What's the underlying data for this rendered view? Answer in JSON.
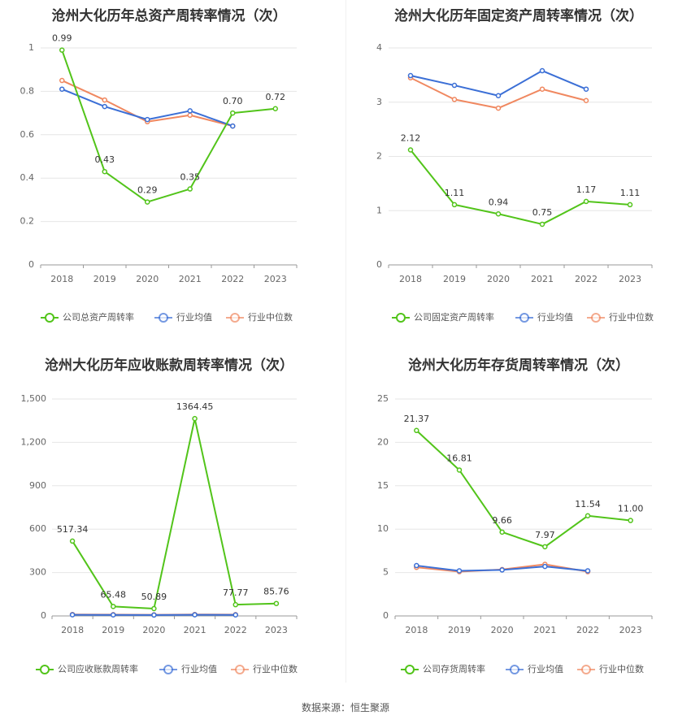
{
  "source": "数据来源：恒生聚源",
  "colors": {
    "company": "#52c41a",
    "avg": "#3b6fd6",
    "median": "#f08860"
  },
  "chart_data": [
    {
      "type": "line",
      "title": "沧州大化历年总资产周转率情况（次）",
      "categories": [
        "2018",
        "2019",
        "2020",
        "2021",
        "2022",
        "2023"
      ],
      "ylim": [
        0,
        1
      ],
      "yticks": [
        "0",
        "0.2",
        "0.4",
        "0.6",
        "0.8",
        "1"
      ],
      "ytick_values": [
        0,
        0.2,
        0.4,
        0.6,
        0.8,
        1
      ],
      "legend_position": "bottom",
      "series": [
        {
          "name": "公司总资产周转率",
          "values": [
            0.99,
            0.43,
            0.29,
            0.35,
            0.7,
            0.72
          ],
          "labels": [
            "0.99",
            "0.43",
            "0.29",
            "0.35",
            "0.70",
            "0.72"
          ]
        },
        {
          "name": "行业均值",
          "values": [
            0.81,
            0.73,
            0.67,
            0.71,
            0.64,
            null
          ]
        },
        {
          "name": "行业中位数",
          "values": [
            0.85,
            0.76,
            0.66,
            0.69,
            0.64,
            null
          ]
        }
      ]
    },
    {
      "type": "line",
      "title": "沧州大化历年固定资产周转率情况（次）",
      "categories": [
        "2018",
        "2019",
        "2020",
        "2021",
        "2022",
        "2023"
      ],
      "ylim": [
        0,
        4
      ],
      "yticks": [
        "0",
        "1",
        "2",
        "3",
        "4"
      ],
      "ytick_values": [
        0,
        1,
        2,
        3,
        4
      ],
      "legend_position": "bottom",
      "series": [
        {
          "name": "公司固定资产周转率",
          "values": [
            2.12,
            1.11,
            0.94,
            0.75,
            1.17,
            1.11
          ],
          "labels": [
            "2.12",
            "1.11",
            "0.94",
            "0.75",
            "1.17",
            "1.11"
          ]
        },
        {
          "name": "行业均值",
          "values": [
            3.49,
            3.31,
            3.12,
            3.58,
            3.24,
            null
          ]
        },
        {
          "name": "行业中位数",
          "values": [
            3.45,
            3.05,
            2.89,
            3.24,
            3.03,
            null
          ]
        }
      ]
    },
    {
      "type": "line",
      "title": "沧州大化历年应收账款周转率情况（次）",
      "categories": [
        "2018",
        "2019",
        "2020",
        "2021",
        "2022",
        "2023"
      ],
      "ylim": [
        0,
        1500
      ],
      "yticks": [
        "0",
        "300",
        "600",
        "900",
        "1,200",
        "1,500"
      ],
      "ytick_values": [
        0,
        300,
        600,
        900,
        1200,
        1500
      ],
      "legend_position": "bottom",
      "series": [
        {
          "name": "公司应收账款周转率",
          "values": [
            517.34,
            65.48,
            50.89,
            1364.45,
            77.77,
            85.76
          ],
          "labels": [
            "517.34",
            "65.48",
            "50.89",
            "1364.45",
            "77.77",
            "85.76"
          ]
        },
        {
          "name": "行业均值",
          "values": [
            8,
            7,
            6,
            8,
            7,
            null
          ]
        },
        {
          "name": "行业中位数",
          "values": [
            10,
            9,
            8,
            10,
            9,
            null
          ]
        }
      ]
    },
    {
      "type": "line",
      "title": "沧州大化历年存货周转率情况（次）",
      "categories": [
        "2018",
        "2019",
        "2020",
        "2021",
        "2022",
        "2023"
      ],
      "ylim": [
        0,
        25
      ],
      "yticks": [
        "0",
        "5",
        "10",
        "15",
        "20",
        "25"
      ],
      "ytick_values": [
        0,
        5,
        10,
        15,
        20,
        25
      ],
      "legend_position": "bottom",
      "series": [
        {
          "name": "公司存货周转率",
          "values": [
            21.37,
            16.81,
            9.66,
            7.97,
            11.54,
            11.0
          ],
          "labels": [
            "21.37",
            "16.81",
            "9.66",
            "7.97",
            "11.54",
            "11.00"
          ]
        },
        {
          "name": "行业均值",
          "values": [
            5.8,
            5.2,
            5.3,
            5.7,
            5.2,
            null
          ]
        },
        {
          "name": "行业中位数",
          "values": [
            5.6,
            5.1,
            5.35,
            5.95,
            5.1,
            null
          ]
        }
      ]
    }
  ]
}
